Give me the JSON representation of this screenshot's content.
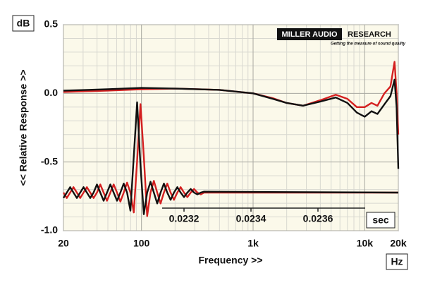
{
  "chart_data": [
    {
      "type": "line",
      "xscale": "log",
      "yunit": "dB",
      "xunit": "Hz",
      "ylabel": "<< Relative Response >>",
      "xlabel": "Frequency >>",
      "annotations": [
        "MILLER AUDIO",
        "RESEARCH",
        "Getting the measure of sound quality"
      ],
      "xlim": [
        20,
        20000
      ],
      "ylim": [
        -1,
        0.5
      ],
      "xticks": [
        20,
        100,
        {
          "value": 1000,
          "label": "1k"
        },
        {
          "value": 10000,
          "label": "10k"
        },
        {
          "value": 20000,
          "label": "20k"
        }
      ],
      "yticks": [
        0.5,
        {
          "value": 0,
          "label": "0.0"
        },
        -0.5,
        {
          "value": -1,
          "label": "-1.0"
        }
      ],
      "grid": true,
      "x": [
        20,
        50,
        100,
        200,
        500,
        1000,
        1500,
        2000,
        2800,
        4000,
        5500,
        7000,
        8500,
        10000,
        11500,
        13000,
        15000,
        17000,
        18500,
        19300,
        20000
      ],
      "series": [
        {
          "color": "#d42020",
          "values": [
            0.01,
            0.02,
            0.03,
            0.035,
            0.025,
            0.0,
            -0.035,
            -0.07,
            -0.09,
            -0.05,
            -0.01,
            -0.04,
            -0.1,
            -0.1,
            -0.07,
            -0.09,
            0.0,
            0.05,
            0.23,
            0.0,
            -0.3
          ]
        },
        {
          "color": "#111111",
          "values": [
            0.02,
            0.03,
            0.04,
            0.035,
            0.025,
            0.0,
            -0.04,
            -0.07,
            -0.09,
            -0.06,
            -0.03,
            -0.07,
            -0.14,
            -0.17,
            -0.13,
            -0.15,
            -0.08,
            -0.02,
            0.1,
            -0.1,
            -0.55
          ]
        }
      ]
    },
    {
      "type": "line",
      "xunit": "sec",
      "xlim": [
        0.02284,
        0.02384
      ],
      "ylim": [
        -0.25,
        1.0
      ],
      "xticks": [
        0.0232,
        0.0234,
        0.0236
      ],
      "x": [
        0.02284,
        0.02285,
        0.02286,
        0.02287,
        0.02288,
        0.02289,
        0.0229,
        0.02291,
        0.02292,
        0.02293,
        0.02294,
        0.02295,
        0.02296,
        0.02297,
        0.02298,
        0.02299,
        0.023,
        0.02301,
        0.02302,
        0.02303,
        0.02304,
        0.02305,
        0.02306,
        0.02307,
        0.02308,
        0.02309,
        0.0231,
        0.02311,
        0.02312,
        0.02313,
        0.02314,
        0.02315,
        0.02316,
        0.02317,
        0.02318,
        0.02319,
        0.0232,
        0.02321,
        0.02322,
        0.02323,
        0.02324,
        0.02325,
        0.02326,
        0.02384
      ],
      "series": [
        {
          "color": "#d42020",
          "values": [
            0,
            -0.06,
            0,
            0.06,
            0,
            -0.06,
            0,
            0.06,
            0,
            -0.06,
            0,
            0.09,
            0,
            -0.09,
            0,
            0.09,
            0,
            -0.1,
            0,
            0.11,
            0,
            -0.22,
            0.35,
            0.98,
            0.4,
            -0.26,
            0,
            0.13,
            0,
            -0.12,
            0,
            0.1,
            0,
            -0.08,
            0,
            0.06,
            0,
            -0.05,
            0,
            0.04,
            0,
            -0.02,
            0,
            0
          ]
        },
        {
          "color": "#111111",
          "values": [
            -0.06,
            0,
            0.06,
            0,
            -0.06,
            0,
            0.06,
            0,
            -0.06,
            0,
            0.09,
            0,
            -0.09,
            0,
            0.09,
            0,
            -0.09,
            0,
            0.1,
            0,
            -0.2,
            0.4,
            1,
            0.3,
            -0.24,
            0,
            0.12,
            0,
            -0.12,
            0,
            0.1,
            0,
            -0.08,
            0,
            0.06,
            0,
            -0.05,
            0,
            0.04,
            0,
            -0.02,
            0,
            0.01,
            0
          ]
        }
      ]
    }
  ]
}
